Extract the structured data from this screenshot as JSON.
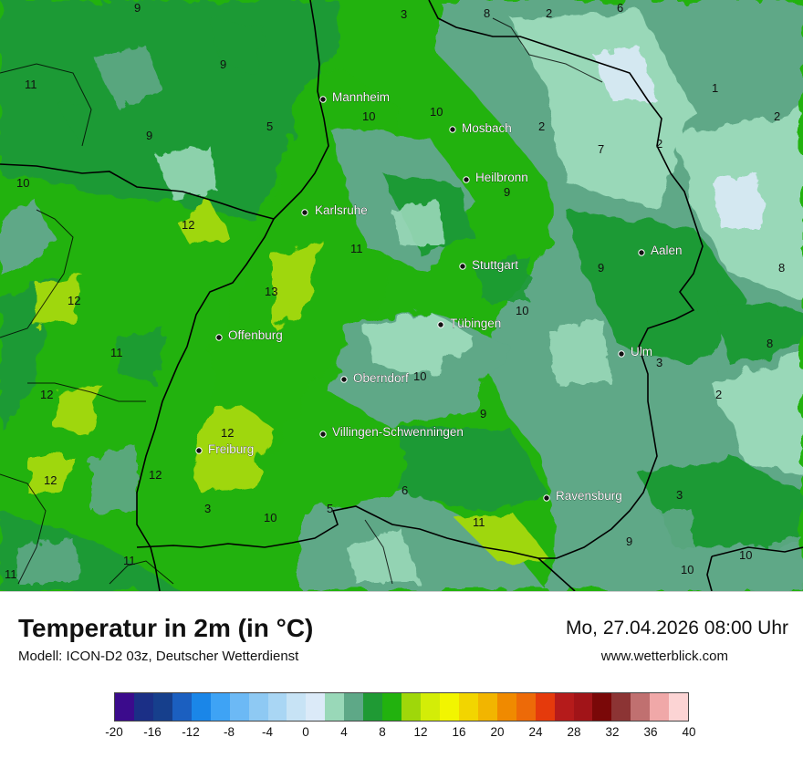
{
  "map": {
    "cities": [
      {
        "id": "mannheim",
        "name": "Mannheim"
      },
      {
        "id": "mosbach",
        "name": "Mosbach"
      },
      {
        "id": "heilbronn",
        "name": "Heilbronn"
      },
      {
        "id": "karlsruhe",
        "name": "Karlsruhe"
      },
      {
        "id": "stuttgart",
        "name": "Stuttgart"
      },
      {
        "id": "aalen",
        "name": "Aalen"
      },
      {
        "id": "tuebingen",
        "name": "Tübingen"
      },
      {
        "id": "offenburg",
        "name": "Offenburg"
      },
      {
        "id": "ulm",
        "name": "Ulm"
      },
      {
        "id": "oberndorf",
        "name": "Oberndorf"
      },
      {
        "id": "villingen",
        "name": "Villingen-Schwenningen"
      },
      {
        "id": "freiburg",
        "name": "Freiburg"
      },
      {
        "id": "ravensburg",
        "name": "Ravensburg"
      }
    ],
    "isolabels": [
      "9",
      "3",
      "8",
      "2",
      "6",
      "9",
      "11",
      "1",
      "2",
      "5",
      "10",
      "10",
      "2",
      "9",
      "7",
      "2",
      "10",
      "9",
      "12",
      "11",
      "9",
      "8",
      "13",
      "12",
      "10",
      "11",
      "8",
      "12",
      "10",
      "3",
      "2",
      "12",
      "9",
      "12",
      "12",
      "6",
      "3",
      "3",
      "5",
      "10",
      "11",
      "11",
      "9",
      "10",
      "10",
      "11",
      "10"
    ]
  },
  "footer": {
    "title": "Temperatur in 2m (in °C)",
    "model": "Modell: ICON-D2 03z, Deutscher Wetterdienst",
    "datetime": "Mo, 27.04.2026 08:00 Uhr",
    "site": "www.wetterblick.com"
  },
  "legend": {
    "colors": [
      "#3b0b8c",
      "#1b2f86",
      "#163f8c",
      "#1b5fc0",
      "#1a86e8",
      "#3ea3f5",
      "#6cb9f5",
      "#8ec9f3",
      "#a9d6f4",
      "#c7e3f5",
      "#dbeaf8",
      "#99d8b8",
      "#5ea887",
      "#1f9a34",
      "#22b20e",
      "#9fd70a",
      "#d3ed08",
      "#f2f500",
      "#f2d500",
      "#f2b500",
      "#f08a00",
      "#ed6a08",
      "#e53a0c",
      "#b51b1b",
      "#a11418",
      "#7a0808",
      "#8c3434",
      "#c07070",
      "#f0a8a8",
      "#fcd4d4"
    ],
    "ticks": [
      "-20",
      "-16",
      "-12",
      "-8",
      "-4",
      "0",
      "4",
      "8",
      "12",
      "16",
      "20",
      "24",
      "28",
      "32",
      "36",
      "40"
    ]
  }
}
